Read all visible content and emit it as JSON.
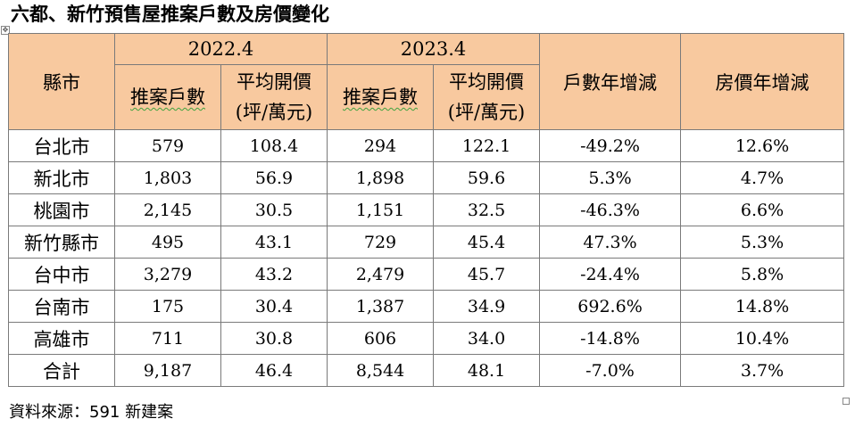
{
  "title": "六都、新竹預售屋推案戶數及房價變化",
  "table": {
    "header": {
      "city": "縣市",
      "period_a": "2022.4",
      "period_b": "2023.4",
      "units": "推案戶數",
      "price_line1": "平均開價",
      "price_line2": "(坪/萬元)",
      "units_yoy": "戶數年增減",
      "price_yoy": "房價年增減"
    },
    "rows": [
      {
        "city": "台北市",
        "u22": "579",
        "p22": "108.4",
        "u23": "294",
        "p23": "122.1",
        "uy": "-49.2%",
        "py": "12.6%"
      },
      {
        "city": "新北市",
        "u22": "1,803",
        "p22": "56.9",
        "u23": "1,898",
        "p23": "59.6",
        "uy": "5.3%",
        "py": "4.7%"
      },
      {
        "city": "桃園市",
        "u22": "2,145",
        "p22": "30.5",
        "u23": "1,151",
        "p23": "32.5",
        "uy": "-46.3%",
        "py": "6.6%"
      },
      {
        "city": "新竹縣市",
        "u22": "495",
        "p22": "43.1",
        "u23": "729",
        "p23": "45.4",
        "uy": "47.3%",
        "py": "5.3%"
      },
      {
        "city": "台中市",
        "u22": "3,279",
        "p22": "43.2",
        "u23": "2,479",
        "p23": "45.7",
        "uy": "-24.4%",
        "py": "5.8%"
      },
      {
        "city": "台南市",
        "u22": "175",
        "p22": "30.4",
        "u23": "1,387",
        "p23": "34.9",
        "uy": "692.6%",
        "py": "14.8%"
      },
      {
        "city": "高雄市",
        "u22": "711",
        "p22": "30.8",
        "u23": "606",
        "p23": "34.0",
        "uy": "-14.8%",
        "py": "10.4%"
      },
      {
        "city": "合計",
        "u22": "9,187",
        "p22": "46.4",
        "u23": "8,544",
        "p23": "48.1",
        "uy": "-7.0%",
        "py": "3.7%"
      }
    ]
  },
  "source": "資料來源：591 新建案",
  "colors": {
    "header_bg": "#f8c99f",
    "border": "#7a7a7a",
    "spell_underline": "#3fa33f"
  },
  "icons": {
    "table_handle": "move-handle-icon",
    "resize": "resize-handle-icon"
  }
}
